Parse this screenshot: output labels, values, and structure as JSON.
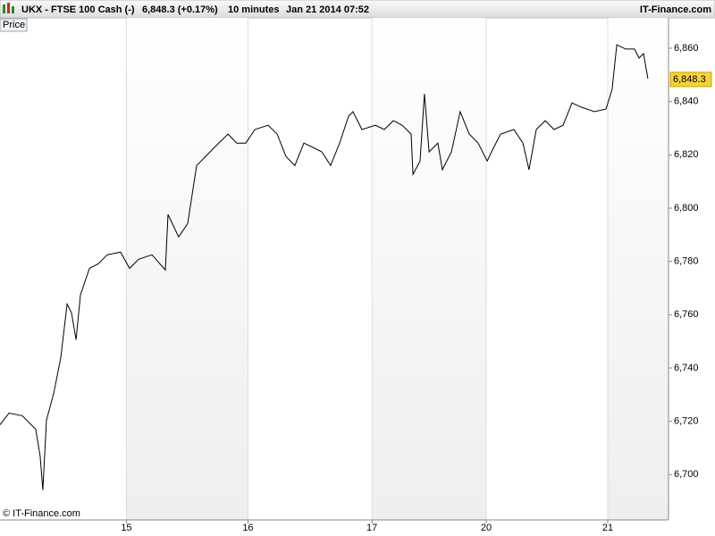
{
  "header": {
    "symbol": "UKX - FTSE 100 Cash (-)",
    "quote": "6,848.3 (+0.17%)",
    "interval": "10 minutes",
    "timestamp": "Jan 21 2014 07:52",
    "brand": "IT-Finance.com"
  },
  "chart_data": {
    "type": "line",
    "panel_label": "Price",
    "copyright": "© IT-Finance.com",
    "x": [
      0,
      3.7,
      9.2,
      14.7,
      16.5,
      17.6,
      19.1,
      22.1,
      25.0,
      27.6,
      29.4,
      31.3,
      33.1,
      36.8,
      40.4,
      44.1,
      49.6,
      53.3,
      57.0,
      62.5,
      68.0,
      69.1,
      73.5,
      77.2,
      80.9,
      84.6,
      88.2,
      93.8,
      97.4,
      101.1,
      104.8,
      110.3,
      114.0,
      117.6,
      121.3,
      125.0,
      128.7,
      132.4,
      136.0,
      139.7,
      143.4,
      145.2,
      148.9,
      154.4,
      158.1,
      161.8,
      165.4,
      169.1,
      169.9,
      172.8,
      174.6,
      176.5,
      180.1,
      182.0,
      185.7,
      189.3,
      193.0,
      196.7,
      200.4,
      202.2,
      205.9,
      211.4,
      215.1,
      217.6,
      220.6,
      224.3,
      227.9,
      231.6,
      235.3,
      239.0,
      242.6,
      244.5,
      249.3,
      251.8,
      253.7,
      257.4,
      261.0,
      262.9,
      264.7,
      266.5
    ],
    "series": [
      {
        "name": "Price",
        "color": "#000000",
        "values": [
          6718.7,
          6723.1,
          6722.1,
          6717.0,
          6707.0,
          6694.2,
          6720.4,
          6730.5,
          6743.9,
          6764.0,
          6760.7,
          6750.6,
          6767.4,
          6777.4,
          6779.1,
          6782.5,
          6783.5,
          6777.4,
          6780.8,
          6782.5,
          6776.8,
          6797.6,
          6789.2,
          6794.2,
          6816.0,
          6819.4,
          6822.8,
          6827.8,
          6824.4,
          6824.4,
          6829.5,
          6831.1,
          6827.8,
          6819.4,
          6816.0,
          6824.4,
          6822.8,
          6821.1,
          6816.0,
          6824.4,
          6834.5,
          6836.2,
          6829.5,
          6831.1,
          6829.5,
          6832.8,
          6831.1,
          6827.8,
          6812.7,
          6817.7,
          6842.9,
          6821.1,
          6824.4,
          6814.4,
          6821.1,
          6836.2,
          6827.8,
          6824.4,
          6817.7,
          6821.1,
          6827.8,
          6829.5,
          6824.4,
          6814.4,
          6829.5,
          6832.8,
          6829.5,
          6831.1,
          6839.5,
          6837.9,
          6836.8,
          6836.2,
          6837.2,
          6844.6,
          6861.3,
          6859.7,
          6859.7,
          6856.3,
          6858.0,
          6848.6
        ]
      }
    ],
    "last_price": {
      "value": 6848.3,
      "label": "6,848.3"
    },
    "xlim": [
      0,
      275
    ],
    "ylim": [
      6683,
      6871.4
    ],
    "xticks": [
      {
        "value": 52,
        "label": "15"
      },
      {
        "value": 102,
        "label": "16"
      },
      {
        "value": 153,
        "label": "17"
      },
      {
        "value": 200,
        "label": "20"
      },
      {
        "value": 250,
        "label": "21"
      }
    ],
    "yticks": [
      {
        "value": 6700,
        "label": "6,700"
      },
      {
        "value": 6720,
        "label": "6,720"
      },
      {
        "value": 6740,
        "label": "6,740"
      },
      {
        "value": 6760,
        "label": "6,760"
      },
      {
        "value": 6780,
        "label": "6,780"
      },
      {
        "value": 6800,
        "label": "6,800"
      },
      {
        "value": 6820,
        "label": "6,820"
      },
      {
        "value": 6840,
        "label": "6,840"
      },
      {
        "value": 6860,
        "label": "6,860"
      }
    ],
    "grid": true
  }
}
